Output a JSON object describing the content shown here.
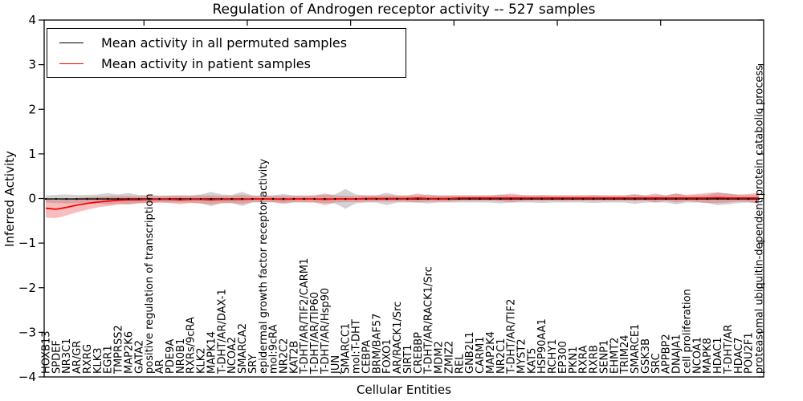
{
  "title": "Regulation of Androgen receptor activity -- 527 samples",
  "legend": {
    "items": [
      {
        "label": "Mean activity in all permuted samples",
        "color": "#000000"
      },
      {
        "label": "Mean activity in patient samples",
        "color": "#ff0000"
      }
    ],
    "position": "upper left"
  },
  "colors": {
    "permuted_line": "#000000",
    "permuted_band": "#888888",
    "patient_line": "#ff0000",
    "patient_band": "#e85555",
    "frame": "#000000"
  },
  "chart_data": {
    "type": "line",
    "title": "Regulation of Androgen receptor activity -- 527 samples",
    "xlabel": "Cellular Entities",
    "ylabel": "Inferred Activity",
    "ylim": [
      -4,
      4
    ],
    "yticks": [
      4,
      3,
      2,
      1,
      0,
      -1,
      -2,
      -3,
      -4
    ],
    "top_tick_every": 10,
    "grid": false,
    "legend_position": "upper left",
    "categories": [
      "HOXB13",
      "SPDEF",
      "NR3C1",
      "AR/GR",
      "RXRG",
      "KLK3",
      "EGR1",
      "TMPRSS2",
      "MAP2K6",
      "GATA2",
      "positive regulation of transcription",
      "AR",
      "PDE9A",
      "NR0B1",
      "RXRs/9cRA",
      "KLK2",
      "MAPK14",
      "T-DHT/AR/DAX-1",
      "NCOA2",
      "SMARCA2",
      "SRY",
      "epidermal growth factor receptor activity",
      "mol:9cRA",
      "NR2C2",
      "KAT2B",
      "T-DHT/AR/TIF2/CARM1",
      "T-DHT/AR/TIP60",
      "T-DHT/AR/Hsp90",
      "JUN",
      "SMARCC1",
      "mol:T-DHT",
      "CEBPA",
      "BRM/BAF57",
      "FOXO1",
      "AR/RACK1/Src",
      "SIRT1",
      "CREBBP",
      "T-DHT/AR/RACK1/Src",
      "MDM2",
      "ZMIZ2",
      "REL",
      "GNB2L1",
      "CARM1",
      "MAP2K4",
      "NR2C1",
      "T-DHT/AR/TIF2",
      "MYST2",
      "KAT5",
      "HSP90AA1",
      "RCHY1",
      "EP300",
      "PKN1",
      "RXRA",
      "RXRB",
      "SENP1",
      "EHMT2",
      "TRIM24",
      "SMARCE1",
      "GSK3B",
      "SRC",
      "APPBP2",
      "DNAJA1",
      "cell proliferation",
      "NCOA1",
      "MAPK8",
      "HDAC1",
      "T-DHT/AR",
      "HDAC7",
      "POU2F1",
      "proteasomal ubiquitin-dependent protein catabolic process"
    ],
    "series": [
      {
        "name": "Mean activity in all permuted samples",
        "color": "#000000",
        "values": [
          -0.01,
          -0.01,
          -0.01,
          -0.01,
          -0.01,
          -0.01,
          -0.01,
          -0.01,
          -0.01,
          -0.01,
          -0.01,
          -0.01,
          -0.01,
          -0.01,
          -0.01,
          -0.01,
          -0.01,
          -0.01,
          -0.01,
          -0.01,
          -0.01,
          -0.01,
          -0.01,
          -0.01,
          -0.01,
          -0.01,
          -0.01,
          -0.01,
          -0.01,
          -0.01,
          -0.01,
          -0.01,
          -0.01,
          -0.01,
          -0.01,
          -0.01,
          -0.01,
          -0.01,
          -0.01,
          -0.01,
          -0.01,
          -0.01,
          -0.01,
          -0.01,
          -0.01,
          -0.01,
          -0.01,
          -0.01,
          -0.01,
          -0.01,
          -0.01,
          -0.01,
          -0.01,
          -0.01,
          -0.01,
          -0.01,
          -0.01,
          -0.01,
          -0.01,
          -0.01,
          -0.01,
          -0.01,
          -0.01,
          -0.01,
          -0.01,
          -0.01,
          -0.01,
          -0.01,
          -0.01,
          -0.01
        ],
        "band_halfwidth": [
          0.08,
          0.09,
          0.1,
          0.09,
          0.09,
          0.1,
          0.13,
          0.1,
          0.13,
          0.09,
          0.09,
          0.08,
          0.08,
          0.08,
          0.08,
          0.1,
          0.16,
          0.1,
          0.09,
          0.16,
          0.08,
          0.08,
          0.08,
          0.11,
          0.08,
          0.08,
          0.08,
          0.09,
          0.1,
          0.22,
          0.1,
          0.08,
          0.08,
          0.14,
          0.08,
          0.08,
          0.08,
          0.1,
          0.08,
          0.08,
          0.08,
          0.08,
          0.08,
          0.08,
          0.1,
          0.08,
          0.08,
          0.08,
          0.09,
          0.08,
          0.08,
          0.08,
          0.08,
          0.09,
          0.08,
          0.08,
          0.08,
          0.11,
          0.08,
          0.08,
          0.08,
          0.12,
          0.08,
          0.08,
          0.09,
          0.14,
          0.12,
          0.09,
          0.08,
          0.1
        ],
        "band_color": "#888888",
        "markers": true
      },
      {
        "name": "Mean activity in patient samples",
        "color": "#ff0000",
        "values": [
          -0.22,
          -0.24,
          -0.2,
          -0.15,
          -0.11,
          -0.08,
          -0.06,
          -0.04,
          -0.03,
          -0.03,
          -0.02,
          -0.02,
          -0.02,
          -0.03,
          -0.02,
          -0.02,
          -0.03,
          -0.02,
          -0.02,
          -0.02,
          -0.01,
          -0.01,
          -0.01,
          -0.02,
          -0.01,
          -0.01,
          -0.01,
          -0.02,
          -0.01,
          -0.01,
          -0.01,
          0.0,
          0.0,
          0.0,
          0.0,
          0.0,
          0.01,
          0.0,
          0.0,
          0.0,
          0.01,
          0.01,
          0.01,
          0.01,
          0.01,
          0.01,
          0.01,
          0.01,
          0.01,
          0.01,
          0.01,
          0.01,
          0.01,
          0.01,
          0.01,
          0.01,
          0.01,
          0.01,
          0.01,
          0.01,
          0.01,
          0.01,
          0.01,
          0.01,
          0.01,
          0.02,
          0.01,
          0.01,
          0.01,
          0.01
        ],
        "band_halfwidth": [
          0.21,
          0.2,
          0.18,
          0.16,
          0.14,
          0.12,
          0.11,
          0.1,
          0.09,
          0.08,
          0.08,
          0.07,
          0.08,
          0.1,
          0.08,
          0.09,
          0.1,
          0.08,
          0.08,
          0.1,
          0.07,
          0.07,
          0.07,
          0.08,
          0.07,
          0.07,
          0.08,
          0.13,
          0.08,
          0.07,
          0.07,
          0.07,
          0.07,
          0.07,
          0.07,
          0.07,
          0.1,
          0.07,
          0.07,
          0.07,
          0.06,
          0.06,
          0.06,
          0.06,
          0.07,
          0.1,
          0.07,
          0.06,
          0.06,
          0.06,
          0.06,
          0.06,
          0.06,
          0.06,
          0.06,
          0.06,
          0.06,
          0.07,
          0.06,
          0.1,
          0.06,
          0.1,
          0.07,
          0.09,
          0.11,
          0.12,
          0.1,
          0.08,
          0.09,
          0.12
        ],
        "band_color": "#e85555",
        "markers": false
      }
    ]
  }
}
